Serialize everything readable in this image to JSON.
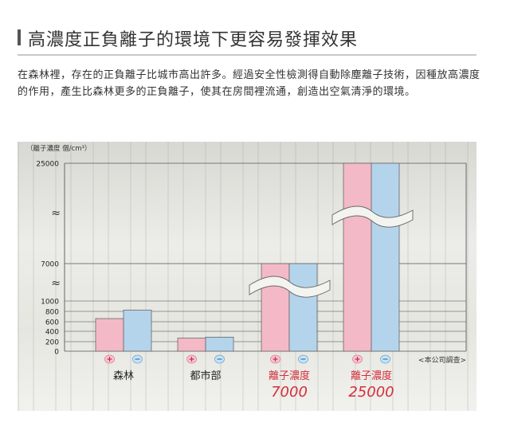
{
  "header": {
    "title": "高濃度正負離子的環境下更容易發揮效果"
  },
  "intro": {
    "text": "在森林裡，存在的正負離子比城市高出許多。經過安全性檢測得自動除塵離子技術，因種放高濃度的作用，產生比森林更多的正負離子，使其在房間裡流通，創造出空氣清淨的環境。"
  },
  "colors": {
    "positive_bar": "#f4b9c6",
    "negative_bar": "#b4d4ec",
    "accent_red": "#d42f3a",
    "gridline": "#777777"
  },
  "icons": {
    "positive": "plus-ion-icon",
    "negative": "minus-ion-icon"
  },
  "chart_data": {
    "type": "bar",
    "ylabel": "（離子濃度 個/cm³）",
    "yticks": [
      "25000",
      "7000",
      "1000",
      "800",
      "600",
      "400",
      "200",
      "0"
    ],
    "axis_break_marks": [
      "≈",
      "≈"
    ],
    "categories": [
      "森林",
      "都市部",
      "離子濃度",
      "離子濃度"
    ],
    "category_values": [
      "",
      "",
      "7000",
      "25000"
    ],
    "series": [
      {
        "values": [
          650,
          260,
          7000,
          25000
        ]
      },
      {
        "values": [
          820,
          280,
          7000,
          25000
        ]
      }
    ],
    "note": "<本公司調查>",
    "grid": true,
    "scale": "broken"
  }
}
